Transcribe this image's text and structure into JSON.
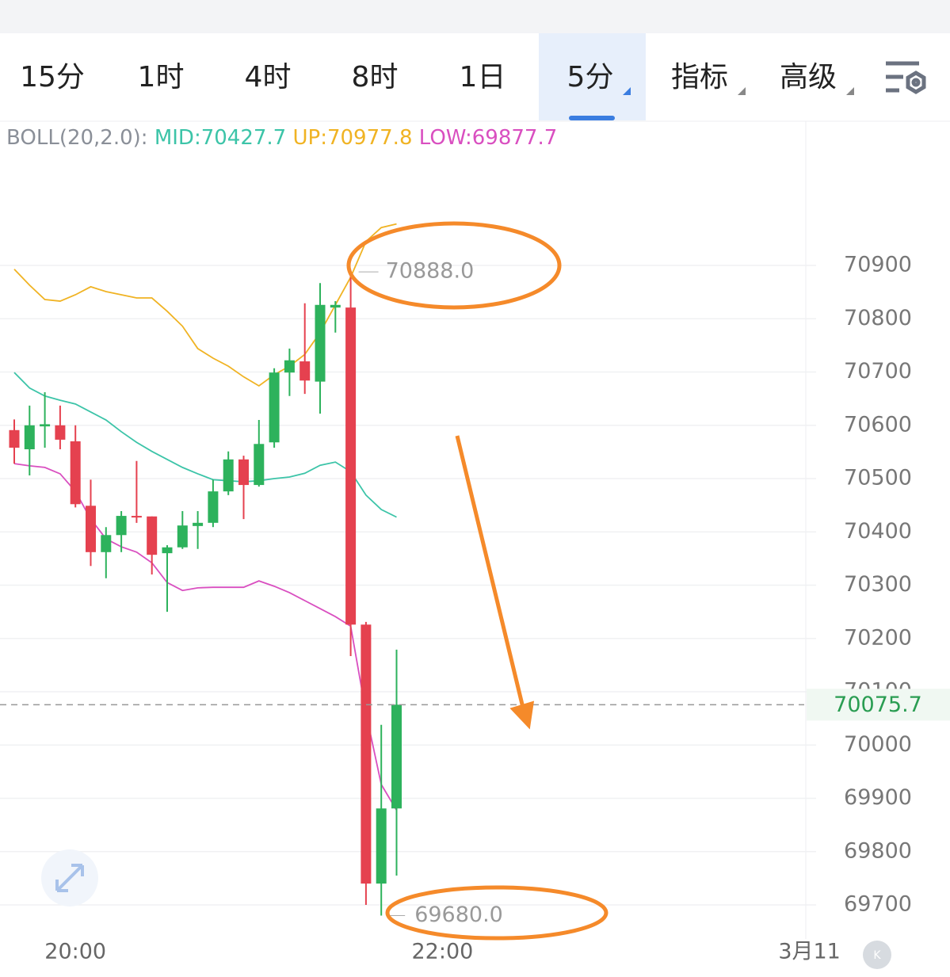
{
  "tabs": {
    "items": [
      "15分",
      "1时",
      "4时",
      "8时",
      "1日",
      "5分",
      "指标",
      "高级"
    ],
    "active": 5
  },
  "chart_data": {
    "type": "candlestick",
    "indicator_label": "BOLL(20,2.0):",
    "ylim": [
      69620,
      71100
    ],
    "yticks": [
      70900,
      70800,
      70700,
      70600,
      70500,
      70400,
      70300,
      70200,
      70100,
      70000,
      69900,
      69800,
      69700
    ],
    "xticks": [
      {
        "value": 4,
        "label": "20:00"
      },
      {
        "value": 28,
        "label": "22:00"
      },
      {
        "value": 52,
        "label": "3月11"
      }
    ],
    "grid": true,
    "up_color": "#2db25c",
    "down_color": "#e5414f",
    "open": [
      70591,
      70555,
      70598,
      70600,
      70570,
      70449,
      70362,
      70394,
      70430,
      70429,
      70360,
      70371,
      70411,
      70417,
      70476,
      70536,
      70488,
      70568,
      70699,
      70720,
      70682,
      70821,
      70821,
      70226,
      69740,
      69881
    ],
    "close": [
      70558,
      70600,
      70602,
      70573,
      70452,
      70362,
      70394,
      70430,
      70427,
      70357,
      70371,
      70412,
      70417,
      70476,
      70536,
      70488,
      70565,
      70699,
      70722,
      70684,
      70826,
      70826,
      70226,
      69740,
      69881,
      70075.7
    ],
    "high": [
      70611,
      70637,
      70662,
      70637,
      70600,
      70498,
      70409,
      70439,
      70533,
      70429,
      70375,
      70439,
      70439,
      70498,
      70551,
      70543,
      70610,
      70707,
      70744,
      70829,
      70867,
      70833,
      70888,
      70231,
      70038,
      70179
    ],
    "low": [
      70528,
      70506,
      70558,
      70555,
      70446,
      70336,
      70313,
      70362,
      70417,
      70320,
      70250,
      70368,
      70368,
      70409,
      70469,
      70424,
      70485,
      70558,
      70655,
      70659,
      70622,
      70774,
      70167,
      69700,
      69680,
      69755
    ],
    "series": [
      {
        "name": "MID",
        "legend": "MID:70427.7",
        "color": "#3cc4a8",
        "values": [
          70699,
          70670,
          70655,
          70647,
          70640,
          70625,
          70610,
          70588,
          70568,
          70551,
          70536,
          70521,
          70509,
          70498,
          70496,
          70494,
          70496,
          70500,
          70503,
          70510,
          70525,
          70531,
          70513,
          70469,
          70442,
          70427.7
        ]
      },
      {
        "name": "UP",
        "legend": "UP:70977.8",
        "color": "#f0b323",
        "values": [
          70893,
          70863,
          70836,
          70833,
          70845,
          70860,
          70851,
          70845,
          70839,
          70839,
          70814,
          70786,
          70744,
          70726,
          70711,
          70691,
          70674,
          70695,
          70711,
          70733,
          70774,
          70826,
          70878,
          70945,
          70971,
          70977.8
        ]
      },
      {
        "name": "LOW",
        "legend": "LOW:69877.7",
        "color": "#d94fc0",
        "values": [
          70528,
          70524,
          70521,
          70509,
          70476,
          70424,
          70387,
          70372,
          70362,
          70342,
          70305,
          70290,
          70295,
          70296,
          70296,
          70296,
          70308,
          70298,
          70286,
          70271,
          70256,
          70241,
          70223,
          70060,
          69926,
          69877.7
        ]
      }
    ],
    "high_label": "70888.0",
    "low_label": "69680.0",
    "last_label": "70075.7"
  }
}
